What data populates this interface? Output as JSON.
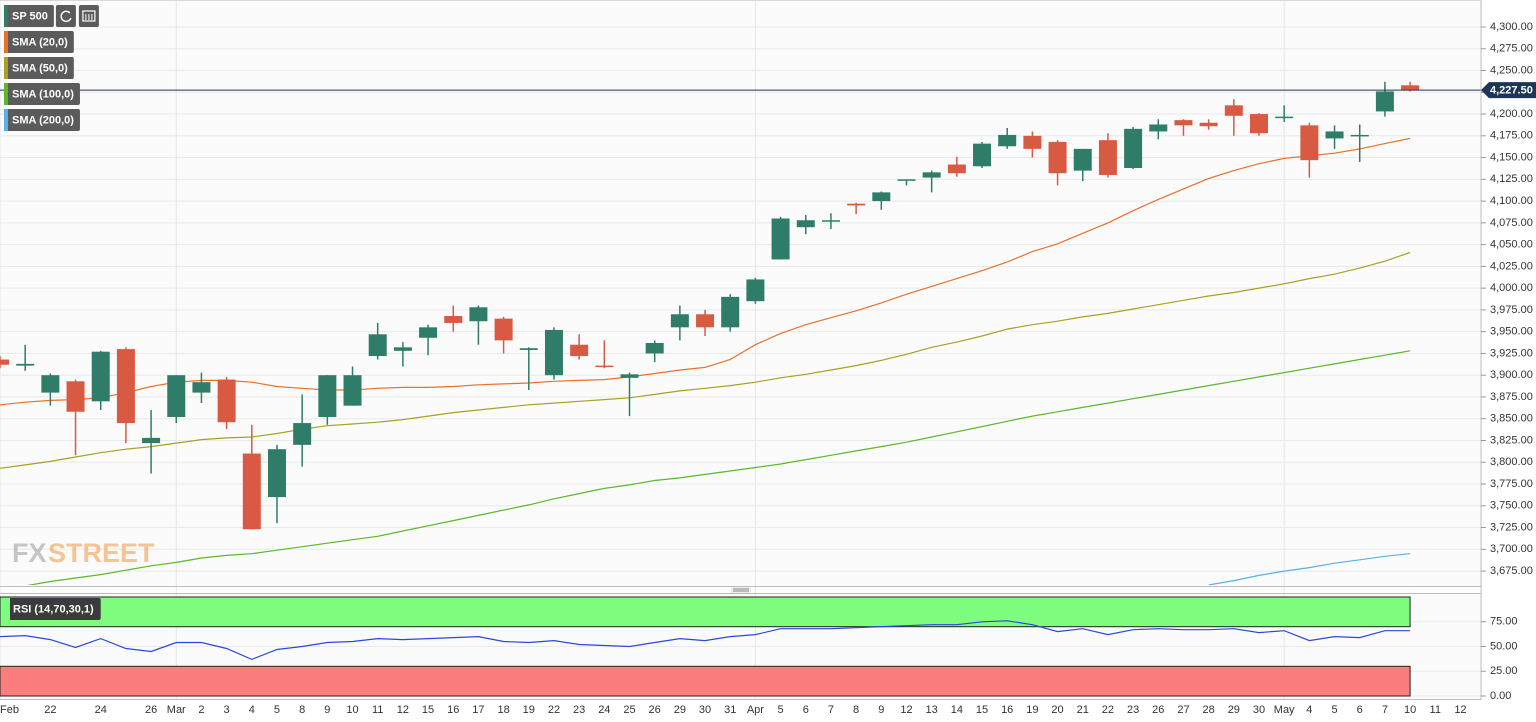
{
  "watermark": [
    "FX",
    "STREET"
  ],
  "chart_data": [
    {
      "type": "candlestick",
      "name": "SP 500",
      "up_color": "#2f7d68",
      "down_color": "#d95a43",
      "grid": true,
      "categories": [
        "Feb",
        null,
        "22",
        null,
        "24",
        null,
        "26",
        "Mar",
        "2",
        "3",
        "4",
        "5",
        "8",
        "9",
        "10",
        "11",
        "12",
        "15",
        "16",
        "17",
        "18",
        "19",
        "22",
        "23",
        "24",
        "25",
        "26",
        "29",
        "30",
        "31",
        "Apr",
        "5",
        "6",
        "7",
        "8",
        "9",
        "12",
        "13",
        "14",
        "15",
        "16",
        "19",
        "20",
        "21",
        "22",
        "23",
        "26",
        "27",
        "28",
        "29",
        "30",
        "May",
        "4",
        "5",
        "6",
        "7",
        "10",
        "11",
        "12"
      ],
      "open": [
        3918,
        3911,
        3880,
        3893,
        3870,
        3930,
        3822,
        3852,
        3880,
        3895,
        3810,
        3760,
        3820,
        3852,
        3865,
        3922,
        3928,
        3943,
        3968,
        3962,
        3965,
        3929,
        3900,
        3935,
        3911,
        3897,
        3925,
        3955,
        3970,
        3955,
        3985,
        4033,
        4070,
        4077,
        4097,
        4100,
        4125,
        4127,
        4142,
        4140,
        4163,
        4175,
        4168,
        4135,
        4170,
        4138,
        4180,
        4193,
        4190,
        4210,
        4200,
        4196,
        4187,
        4172,
        4175,
        4203,
        4233,
        null,
        null
      ],
      "high": [
        3922,
        3935,
        3902,
        3895,
        3928,
        3932,
        3860,
        3900,
        3903,
        3898,
        3843,
        3820,
        3878,
        3900,
        3910,
        3960,
        3938,
        3958,
        3980,
        3980,
        3967,
        3932,
        3955,
        3947,
        3940,
        3903,
        3940,
        3980,
        3975,
        3993,
        4012,
        4082,
        4084,
        4086,
        4098,
        4111,
        4125,
        4135,
        4151,
        4168,
        4184,
        4180,
        4170,
        4160,
        4178,
        4185,
        4194,
        4194,
        4194,
        4217,
        4201,
        4210,
        4190,
        4187,
        4188,
        4237,
        4237,
        null,
        null
      ],
      "low": [
        3908,
        3905,
        3865,
        3808,
        3860,
        3822,
        3787,
        3845,
        3868,
        3838,
        3723,
        3730,
        3795,
        3843,
        3865,
        3918,
        3910,
        3923,
        3950,
        3935,
        3925,
        3883,
        3895,
        3918,
        3908,
        3853,
        3915,
        3940,
        3945,
        3950,
        3982,
        4033,
        4062,
        4068,
        4085,
        4090,
        4118,
        4110,
        4128,
        4138,
        4160,
        4150,
        4118,
        4123,
        4127,
        4137,
        4171,
        4175,
        4182,
        4175,
        4175,
        4191,
        4127,
        4160,
        4145,
        4197,
        4226,
        null,
        null
      ],
      "close": [
        3912,
        3913,
        3900,
        3858,
        3927,
        3845,
        3828,
        3900,
        3892,
        3846,
        3723,
        3815,
        3845,
        3900,
        3900,
        3947,
        3932,
        3955,
        3960,
        3978,
        3940,
        3931,
        3952,
        3922,
        3910,
        3901,
        3937,
        3970,
        3955,
        3990,
        4010,
        4080,
        4078,
        4078,
        4095,
        4110,
        4125,
        4133,
        4132,
        4166,
        4176,
        4160,
        4132,
        4160,
        4130,
        4183,
        4188,
        4187,
        4186,
        4198,
        4178,
        4197,
        4147,
        4180,
        4176,
        4226,
        4227.5,
        null,
        null
      ],
      "series": [
        {
          "name": "SMA (20,0)",
          "color": "#e8722a",
          "values": [
            3866,
            3869,
            3871,
            3872,
            3874,
            3880,
            3887,
            3892,
            3894,
            3894,
            3892,
            3887,
            3885,
            3883,
            3883,
            3885,
            3886,
            3886,
            3887,
            3889,
            3890,
            3891,
            3893,
            3894,
            3895,
            3898,
            3902,
            3906,
            3909,
            3918,
            3935,
            3948,
            3958,
            3966,
            3974,
            3983,
            3993,
            4002,
            4011,
            4020,
            4030,
            4042,
            4051,
            4063,
            4075,
            4089,
            4102,
            4114,
            4126,
            4135,
            4143,
            4149,
            4152,
            4155,
            4160,
            4166,
            4172,
            null,
            null
          ]
        },
        {
          "name": "SMA (50,0)",
          "color": "#a9a123",
          "values": [
            3793,
            3797,
            3801,
            3806,
            3811,
            3815,
            3818,
            3822,
            3826,
            3828,
            3829,
            3833,
            3838,
            3842,
            3844,
            3846,
            3849,
            3853,
            3857,
            3860,
            3863,
            3866,
            3868,
            3870,
            3872,
            3874,
            3878,
            3882,
            3885,
            3888,
            3892,
            3897,
            3901,
            3906,
            3911,
            3917,
            3924,
            3932,
            3938,
            3945,
            3953,
            3958,
            3962,
            3967,
            3971,
            3976,
            3981,
            3986,
            3991,
            3995,
            4000,
            4005,
            4011,
            4016,
            4023,
            4031,
            4041,
            null,
            null
          ]
        },
        {
          "name": "SMA (100,0)",
          "color": "#5cb82a",
          "values": [
            null,
            3658,
            3663,
            3667,
            3671,
            3676,
            3681,
            3685,
            3690,
            3693,
            3695,
            3699,
            3703,
            3707,
            3711,
            3715,
            3721,
            3727,
            3733,
            3739,
            3745,
            3751,
            3758,
            3764,
            3770,
            3774,
            3779,
            3782,
            3786,
            3790,
            3794,
            3798,
            3803,
            3808,
            3813,
            3818,
            3823,
            3829,
            3835,
            3841,
            3847,
            3853,
            3858,
            3863,
            3868,
            3873,
            3878,
            3883,
            3888,
            3893,
            3898,
            3903,
            3908,
            3913,
            3918,
            3923,
            3928,
            null,
            null
          ]
        },
        {
          "name": "SMA (200,0)",
          "color": "#5ab0e8",
          "values": [
            null,
            null,
            null,
            null,
            null,
            null,
            null,
            null,
            null,
            null,
            null,
            null,
            null,
            null,
            null,
            null,
            null,
            null,
            null,
            null,
            null,
            null,
            null,
            null,
            null,
            null,
            null,
            null,
            null,
            null,
            null,
            null,
            null,
            null,
            null,
            null,
            null,
            null,
            null,
            null,
            null,
            null,
            null,
            null,
            null,
            null,
            null,
            null,
            3659,
            3664,
            3670,
            3675,
            3679,
            3684,
            3688,
            3692,
            3695,
            null,
            null
          ]
        }
      ],
      "last_value": 4227.5,
      "last_value_label": "4,227.50",
      "last_value_color": "#1d3557",
      "ylim": [
        3659,
        4331
      ],
      "yticks": [
        {
          "value": 3675,
          "label": "3,675.00"
        },
        {
          "value": 3700,
          "label": "3,700.00"
        },
        {
          "value": 3725,
          "label": "3,725.00"
        },
        {
          "value": 3750,
          "label": "3,750.00"
        },
        {
          "value": 3775,
          "label": "3,775.00"
        },
        {
          "value": 3800,
          "label": "3,800.00"
        },
        {
          "value": 3825,
          "label": "3,825.00"
        },
        {
          "value": 3850,
          "label": "3,850.00"
        },
        {
          "value": 3875,
          "label": "3,875.00"
        },
        {
          "value": 3900,
          "label": "3,900.00"
        },
        {
          "value": 3925,
          "label": "3,925.00"
        },
        {
          "value": 3950,
          "label": "3,950.00"
        },
        {
          "value": 3975,
          "label": "3,975.00"
        },
        {
          "value": 4000,
          "label": "4,000.00"
        },
        {
          "value": 4025,
          "label": "4,025.00"
        },
        {
          "value": 4050,
          "label": "4,050.00"
        },
        {
          "value": 4075,
          "label": "4,075.00"
        },
        {
          "value": 4100,
          "label": "4,100.00"
        },
        {
          "value": 4125,
          "label": "4,125.00"
        },
        {
          "value": 4150,
          "label": "4,150.00"
        },
        {
          "value": 4175,
          "label": "4,175.00"
        },
        {
          "value": 4200,
          "label": "4,200.00"
        },
        {
          "value": 4225,
          "label": "4,225.00"
        },
        {
          "value": 4250,
          "label": "4,250.00"
        },
        {
          "value": 4275,
          "label": "4,275.00"
        },
        {
          "value": 4300,
          "label": "4,300.00"
        }
      ]
    },
    {
      "type": "line",
      "series": [
        {
          "name": "RSI (14,70,30,1)",
          "color": "#2a47e0",
          "values": [
            60,
            61,
            57,
            49,
            58,
            48,
            45,
            54,
            54,
            48,
            37,
            47,
            50,
            54,
            55,
            58,
            57,
            58,
            59,
            60,
            55,
            54,
            56,
            52,
            51,
            50,
            54,
            58,
            56,
            60,
            62,
            68,
            68,
            68,
            69,
            70,
            71,
            72,
            72,
            75,
            76,
            72,
            65,
            68,
            62,
            67,
            68,
            67,
            67,
            68,
            64,
            66,
            56,
            60,
            59,
            66,
            66,
            null,
            null
          ]
        }
      ],
      "bands": [
        {
          "from": 70,
          "to": 100,
          "color": "#7dfc7d"
        },
        {
          "from": 0,
          "to": 30,
          "color": "#fc7d7d"
        }
      ],
      "ylim": [
        0,
        100
      ],
      "yticks": [
        {
          "value": 0,
          "label": "0.00"
        },
        {
          "value": 25,
          "label": "25.00"
        },
        {
          "value": 50,
          "label": "50.00"
        },
        {
          "value": 75,
          "label": "75.00"
        }
      ]
    }
  ]
}
